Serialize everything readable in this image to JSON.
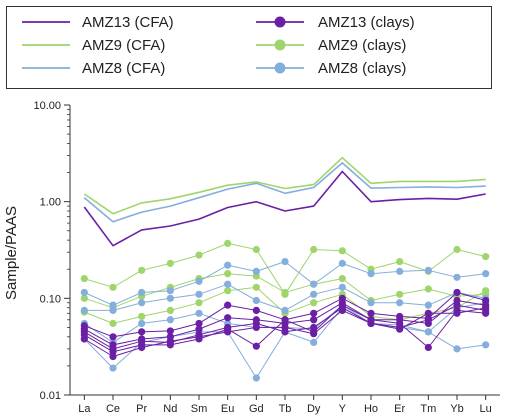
{
  "chart_data": {
    "type": "line",
    "ylabel": "Sample/PAAS",
    "yscale": "log",
    "ylim": [
      0.01,
      10
    ],
    "y_ticks": [
      {
        "value": 10,
        "label": "10.00"
      },
      {
        "value": 1,
        "label": "1.00"
      },
      {
        "value": 0.1,
        "label": "0.10"
      },
      {
        "value": 0.01,
        "label": "0.01"
      }
    ],
    "categories": [
      "La",
      "Ce",
      "Pr",
      "Nd",
      "Sm",
      "Eu",
      "Gd",
      "Tb",
      "Dy",
      "Y",
      "Ho",
      "Er",
      "Tm",
      "Yb",
      "Lu"
    ],
    "grid": false,
    "legend_position": "top",
    "colors": {
      "AMZ13": "#6a1fa4",
      "AMZ9": "#9fd56b",
      "AMZ8": "#84aedb"
    },
    "legend": [
      {
        "label": "AMZ13 (CFA)",
        "color": "#6a1fa4",
        "style": "line"
      },
      {
        "label": "AMZ13 (clays)",
        "color": "#6a1fa4",
        "style": "line-marker"
      },
      {
        "label": "AMZ9 (CFA)",
        "color": "#9fd56b",
        "style": "line"
      },
      {
        "label": "AMZ9 (clays)",
        "color": "#9fd56b",
        "style": "line-marker"
      },
      {
        "label": "AMZ8 (CFA)",
        "color": "#84aedb",
        "style": "line"
      },
      {
        "label": "AMZ8 (clays)",
        "color": "#84aedb",
        "style": "line-marker"
      }
    ],
    "series": [
      {
        "name": "AMZ9 (CFA)",
        "kind": "CFA",
        "color": "#9fd56b",
        "values": [
          1.2,
          0.75,
          0.97,
          1.07,
          1.25,
          1.48,
          1.6,
          1.37,
          1.5,
          2.85,
          1.55,
          1.62,
          1.62,
          1.62,
          1.7
        ]
      },
      {
        "name": "AMZ8 (CFA)",
        "kind": "CFA",
        "color": "#84aedb",
        "values": [
          1.1,
          0.62,
          0.78,
          0.9,
          1.1,
          1.35,
          1.55,
          1.22,
          1.4,
          2.52,
          1.38,
          1.4,
          1.42,
          1.4,
          1.45
        ]
      },
      {
        "name": "AMZ13 (CFA)",
        "kind": "CFA",
        "color": "#6a1fa4",
        "values": [
          0.88,
          0.35,
          0.51,
          0.56,
          0.66,
          0.87,
          1.0,
          0.8,
          0.9,
          2.05,
          1.0,
          1.05,
          1.08,
          1.06,
          1.2
        ]
      },
      {
        "name": "AMZ9 (clays)",
        "kind": "clays",
        "color": "#9fd56b",
        "values": [
          0.16,
          0.13,
          0.195,
          0.23,
          0.28,
          0.37,
          0.32,
          0.11,
          0.32,
          0.31,
          0.2,
          0.24,
          0.19,
          0.32,
          0.27
        ]
      },
      {
        "name": "AMZ9 (clays)",
        "kind": "clays",
        "color": "#9fd56b",
        "values": [
          0.1,
          0.08,
          0.105,
          0.13,
          0.16,
          0.18,
          0.17,
          0.115,
          0.14,
          0.16,
          0.095,
          0.11,
          0.125,
          0.105,
          0.11
        ]
      },
      {
        "name": "AMZ9 (clays)",
        "kind": "clays",
        "color": "#9fd56b",
        "values": [
          0.072,
          0.055,
          0.065,
          0.075,
          0.09,
          0.12,
          0.13,
          0.07,
          0.09,
          0.11,
          0.065,
          0.06,
          0.07,
          0.08,
          0.12
        ]
      },
      {
        "name": "AMZ8 (clays)",
        "kind": "clays",
        "color": "#84aedb",
        "values": [
          0.115,
          0.085,
          0.115,
          0.12,
          0.15,
          0.22,
          0.19,
          0.24,
          0.14,
          0.23,
          0.18,
          0.19,
          0.195,
          0.165,
          0.18
        ]
      },
      {
        "name": "AMZ8 (clays)",
        "kind": "clays",
        "color": "#84aedb",
        "values": [
          0.075,
          0.075,
          0.09,
          0.1,
          0.11,
          0.14,
          0.095,
          0.075,
          0.11,
          0.13,
          0.09,
          0.09,
          0.085,
          0.115,
          0.1
        ]
      },
      {
        "name": "AMZ8 (clays)",
        "kind": "clays",
        "color": "#84aedb",
        "values": [
          0.055,
          0.035,
          0.055,
          0.06,
          0.07,
          0.055,
          0.05,
          0.05,
          0.048,
          0.085,
          0.055,
          0.053,
          0.045,
          0.08,
          0.09
        ]
      },
      {
        "name": "AMZ8 (clays)",
        "kind": "clays",
        "color": "#84aedb",
        "values": [
          0.038,
          0.019,
          0.035,
          0.04,
          0.045,
          0.045,
          0.015,
          0.045,
          0.035,
          0.08,
          0.055,
          0.05,
          0.045,
          0.03,
          0.033
        ]
      },
      {
        "name": "AMZ13 (clays)",
        "kind": "clays",
        "color": "#6a1fa4",
        "values": [
          0.052,
          0.04,
          0.045,
          0.046,
          0.055,
          0.085,
          0.075,
          0.06,
          0.07,
          0.1,
          0.07,
          0.065,
          0.062,
          0.115,
          0.095
        ]
      },
      {
        "name": "AMZ13 (clays)",
        "kind": "clays",
        "color": "#6a1fa4",
        "values": [
          0.048,
          0.033,
          0.038,
          0.04,
          0.048,
          0.063,
          0.06,
          0.055,
          0.06,
          0.09,
          0.06,
          0.06,
          0.055,
          0.095,
          0.085
        ]
      },
      {
        "name": "AMZ13 (clays)",
        "kind": "clays",
        "color": "#6a1fa4",
        "values": [
          0.045,
          0.03,
          0.036,
          0.035,
          0.042,
          0.05,
          0.055,
          0.045,
          0.05,
          0.08,
          0.055,
          0.05,
          0.06,
          0.085,
          0.075
        ]
      },
      {
        "name": "AMZ13 (clays)",
        "kind": "clays",
        "color": "#6a1fa4",
        "values": [
          0.042,
          0.028,
          0.033,
          0.033,
          0.038,
          0.048,
          0.032,
          0.06,
          0.045,
          0.085,
          0.06,
          0.055,
          0.031,
          0.075,
          0.07
        ]
      },
      {
        "name": "AMZ13 (clays)",
        "kind": "clays",
        "color": "#6a1fa4",
        "values": [
          0.038,
          0.025,
          0.031,
          0.036,
          0.04,
          0.045,
          0.05,
          0.05,
          0.043,
          0.075,
          0.055,
          0.048,
          0.07,
          0.07,
          0.08
        ]
      }
    ]
  }
}
